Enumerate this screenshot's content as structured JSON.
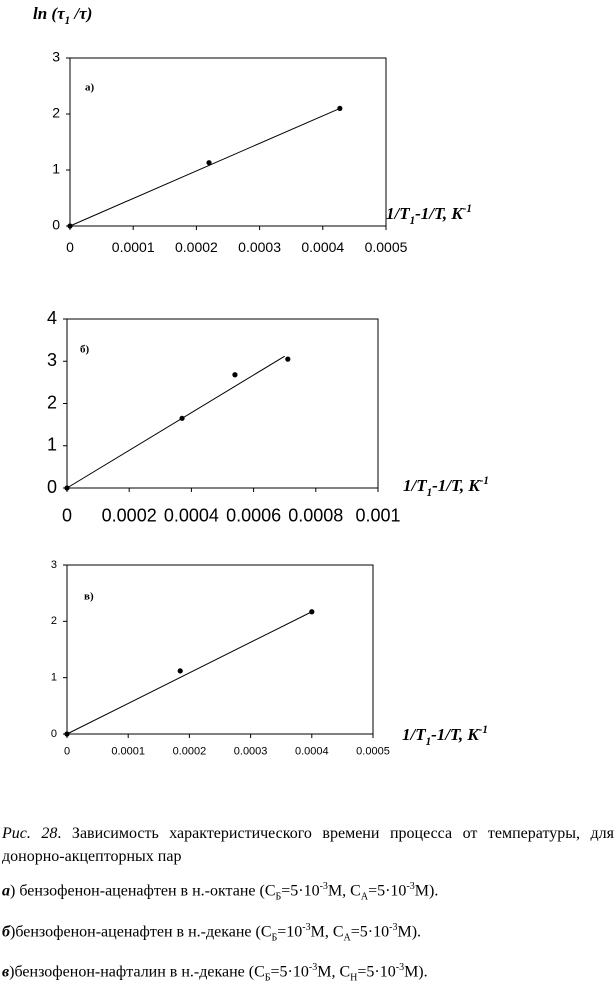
{
  "chart_data": [
    {
      "type": "scatter",
      "y_label": [
        "ln (τ",
        "1",
        " /τ)"
      ],
      "x_label": [
        "1/T",
        "1",
        "-1/T, K",
        "-1"
      ],
      "annotation": "а)",
      "x": [
        0,
        0.00022,
        0.000427
      ],
      "y": [
        0,
        1.13,
        2.1
      ],
      "fit": {
        "x": [
          0,
          0.000427
        ],
        "y": [
          0,
          2.1
        ]
      },
      "xlim": [
        0,
        0.0005
      ],
      "xticks": [
        0,
        0.0001,
        0.0002,
        0.0003,
        0.0004,
        0.0005
      ],
      "ylim": [
        0,
        3
      ],
      "yticks": [
        0,
        1,
        2,
        3
      ],
      "color": "#000000"
    },
    {
      "type": "scatter",
      "x_label": [
        "1/T",
        "1",
        "-1/T, K",
        "-1"
      ],
      "annotation": "б)",
      "x": [
        0,
        0.00037,
        0.00054,
        0.00071
      ],
      "y": [
        0,
        1.65,
        2.68,
        3.05
      ],
      "fit": {
        "x": [
          0,
          0.0007
        ],
        "y": [
          0,
          3.12
        ]
      },
      "xlim": [
        0,
        0.001
      ],
      "xticks": [
        0,
        0.0002,
        0.0004,
        0.0006,
        0.0008,
        0.001
      ],
      "ylim": [
        0,
        4
      ],
      "yticks": [
        0,
        1,
        2,
        3,
        4
      ],
      "color": "#000000"
    },
    {
      "type": "scatter",
      "x_label": [
        "1/T",
        "1",
        "-1/T, K",
        "-1"
      ],
      "annotation": "в)",
      "x": [
        0,
        0.000185,
        0.0004
      ],
      "y": [
        0,
        1.12,
        2.17
      ],
      "fit": {
        "x": [
          0,
          0.0004
        ],
        "y": [
          0,
          2.17
        ]
      },
      "xlim": [
        0,
        0.0005
      ],
      "xticks": [
        0,
        0.0001,
        0.0002,
        0.0003,
        0.0004,
        0.0005
      ],
      "ylim": [
        0,
        3
      ],
      "yticks": [
        0,
        1,
        2,
        3
      ],
      "color": "#000000"
    }
  ],
  "caption": {
    "figure": "Рис. 28",
    "text": ". Зависимость характеристического времени  процесса от температуры, для донорно-акцепторных пар",
    "items": [
      [
        "а",
        ") бензофенон-аценафтен  в н.-октане (С",
        "Б",
        "=5·10",
        "-3",
        "М, С",
        "А",
        "=5·10",
        "-3",
        "М)."
      ],
      [
        "б",
        ")бензофенон-аценафтен  в н.-декане (С",
        "Б",
        "=10",
        "-3",
        "М, С",
        "А",
        "=5·10",
        "-3",
        "М)."
      ],
      [
        "в",
        ")бензофенон-нафталин в н.-декане (С",
        "Б",
        "=5·10",
        "-3",
        "М, С",
        "Н",
        "=5·10",
        "-3",
        "М)."
      ]
    ]
  }
}
